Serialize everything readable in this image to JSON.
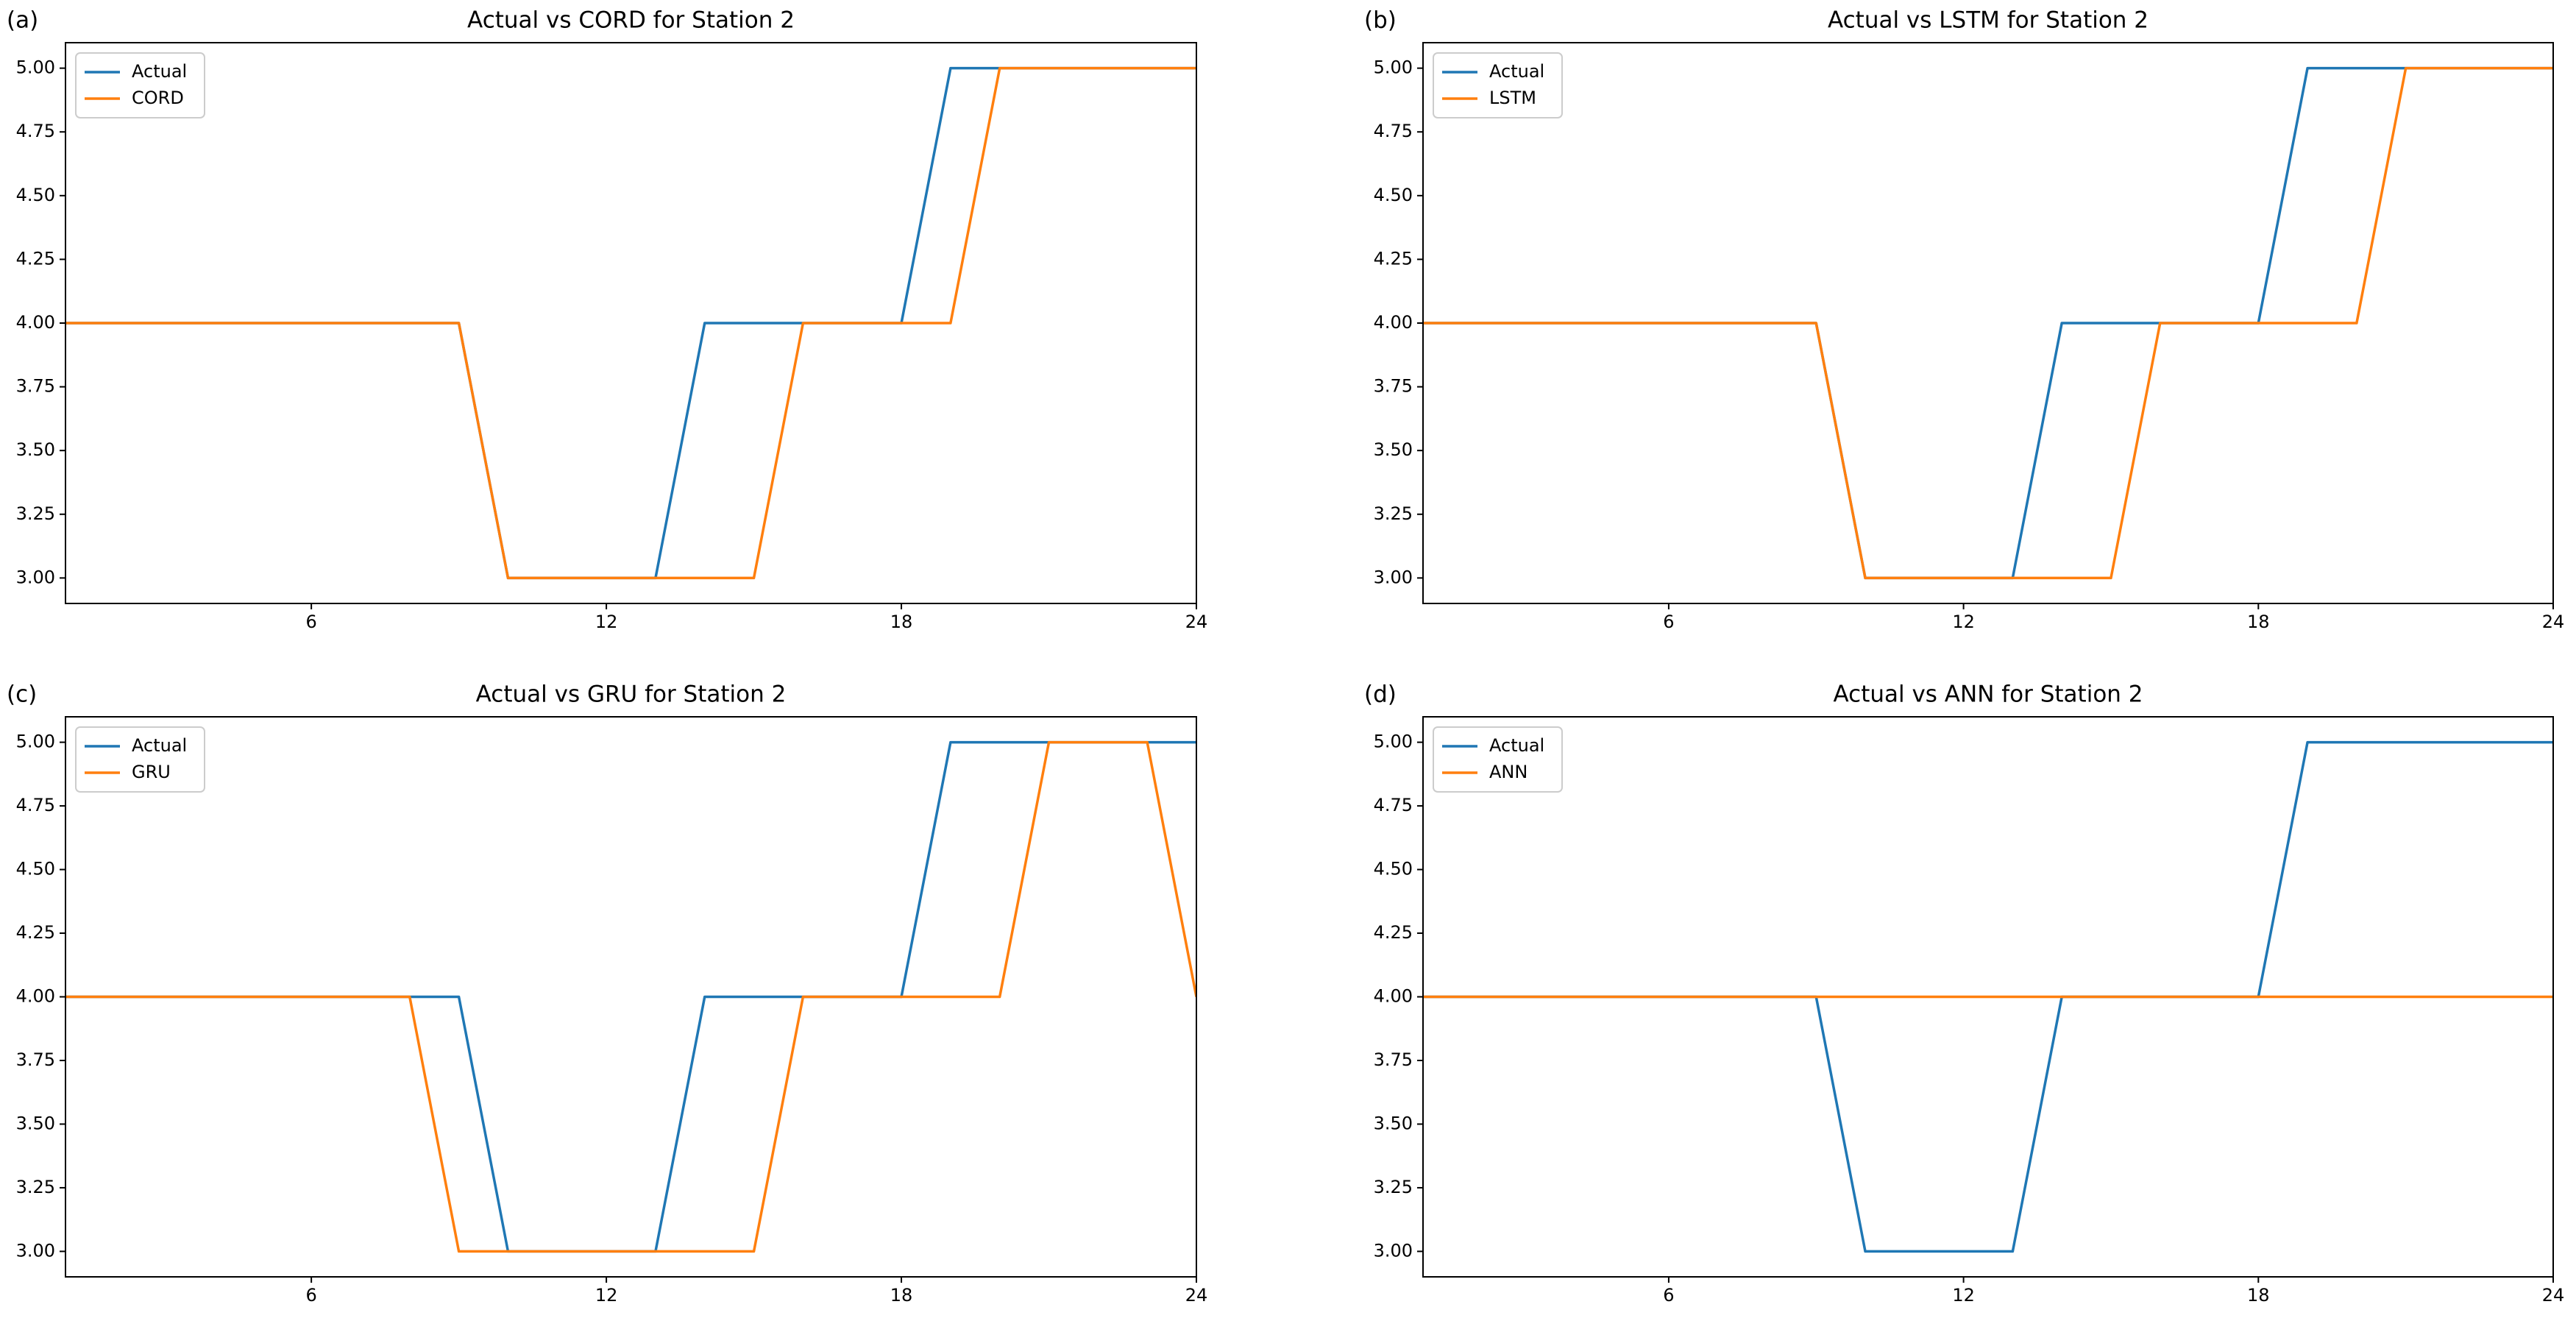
{
  "chart_data": [
    {
      "type": "line",
      "label": "(a)",
      "title": "Actual vs CORD for Station 2",
      "x": [
        1,
        2,
        3,
        4,
        5,
        6,
        7,
        8,
        9,
        10,
        11,
        12,
        13,
        14,
        15,
        16,
        17,
        18,
        19,
        20,
        21,
        22,
        23,
        24
      ],
      "series": [
        {
          "name": "Actual",
          "color": "#1f77b4",
          "values": [
            4,
            4,
            4,
            4,
            4,
            4,
            4,
            4,
            4,
            3,
            3,
            3,
            3,
            4,
            4,
            4,
            4,
            4,
            5,
            5,
            5,
            5,
            5,
            5
          ]
        },
        {
          "name": "CORD",
          "color": "#ff7f0e",
          "values": [
            4,
            4,
            4,
            4,
            4,
            4,
            4,
            4,
            4,
            3,
            3,
            3,
            3,
            3,
            3,
            4,
            4,
            4,
            4,
            5,
            5,
            5,
            5,
            5
          ]
        }
      ],
      "xlim": [
        1,
        24
      ],
      "xticks": [
        6,
        12,
        18,
        24
      ],
      "ylim": [
        2.9,
        5.1
      ],
      "yticks": [
        {
          "value": 3,
          "label": "3.00"
        },
        {
          "value": 3.25,
          "label": "3.25"
        },
        {
          "value": 3.5,
          "label": "3.50"
        },
        {
          "value": 3.75,
          "label": "3.75"
        },
        {
          "value": 4,
          "label": "4.00"
        },
        {
          "value": 4.25,
          "label": "4.25"
        },
        {
          "value": 4.5,
          "label": "4.50"
        },
        {
          "value": 4.75,
          "label": "4.75"
        },
        {
          "value": 5,
          "label": "5.00"
        }
      ],
      "legend": "upper left",
      "grid": false
    },
    {
      "type": "line",
      "label": "(b)",
      "title": "Actual vs LSTM for Station 2",
      "x": [
        1,
        2,
        3,
        4,
        5,
        6,
        7,
        8,
        9,
        10,
        11,
        12,
        13,
        14,
        15,
        16,
        17,
        18,
        19,
        20,
        21,
        22,
        23,
        24
      ],
      "series": [
        {
          "name": "Actual",
          "color": "#1f77b4",
          "values": [
            4,
            4,
            4,
            4,
            4,
            4,
            4,
            4,
            4,
            3,
            3,
            3,
            3,
            4,
            4,
            4,
            4,
            4,
            5,
            5,
            5,
            5,
            5,
            5
          ]
        },
        {
          "name": "LSTM",
          "color": "#ff7f0e",
          "values": [
            4,
            4,
            4,
            4,
            4,
            4,
            4,
            4,
            4,
            3,
            3,
            3,
            3,
            3,
            3,
            4,
            4,
            4,
            4,
            4,
            5,
            5,
            5,
            5
          ]
        }
      ],
      "xlim": [
        1,
        24
      ],
      "xticks": [
        6,
        12,
        18,
        24
      ],
      "ylim": [
        2.9,
        5.1
      ],
      "yticks": [
        {
          "value": 3,
          "label": "3.00"
        },
        {
          "value": 3.25,
          "label": "3.25"
        },
        {
          "value": 3.5,
          "label": "3.50"
        },
        {
          "value": 3.75,
          "label": "3.75"
        },
        {
          "value": 4,
          "label": "4.00"
        },
        {
          "value": 4.25,
          "label": "4.25"
        },
        {
          "value": 4.5,
          "label": "4.50"
        },
        {
          "value": 4.75,
          "label": "4.75"
        },
        {
          "value": 5,
          "label": "5.00"
        }
      ],
      "legend": "upper left",
      "grid": false
    },
    {
      "type": "line",
      "label": "(c)",
      "title": "Actual vs GRU for Station 2",
      "x": [
        1,
        2,
        3,
        4,
        5,
        6,
        7,
        8,
        9,
        10,
        11,
        12,
        13,
        14,
        15,
        16,
        17,
        18,
        19,
        20,
        21,
        22,
        23,
        24
      ],
      "series": [
        {
          "name": "Actual",
          "color": "#1f77b4",
          "values": [
            4,
            4,
            4,
            4,
            4,
            4,
            4,
            4,
            4,
            3,
            3,
            3,
            3,
            4,
            4,
            4,
            4,
            4,
            5,
            5,
            5,
            5,
            5,
            5
          ]
        },
        {
          "name": "GRU",
          "color": "#ff7f0e",
          "values": [
            4,
            4,
            4,
            4,
            4,
            4,
            4,
            4,
            3,
            3,
            3,
            3,
            3,
            3,
            3,
            4,
            4,
            4,
            4,
            4,
            5,
            5,
            5,
            4
          ]
        }
      ],
      "xlim": [
        1,
        24
      ],
      "xticks": [
        6,
        12,
        18,
        24
      ],
      "ylim": [
        2.9,
        5.1
      ],
      "yticks": [
        {
          "value": 3,
          "label": "3.00"
        },
        {
          "value": 3.25,
          "label": "3.25"
        },
        {
          "value": 3.5,
          "label": "3.50"
        },
        {
          "value": 3.75,
          "label": "3.75"
        },
        {
          "value": 4,
          "label": "4.00"
        },
        {
          "value": 4.25,
          "label": "4.25"
        },
        {
          "value": 4.5,
          "label": "4.50"
        },
        {
          "value": 4.75,
          "label": "4.75"
        },
        {
          "value": 5,
          "label": "5.00"
        }
      ],
      "legend": "upper left",
      "grid": false
    },
    {
      "type": "line",
      "label": "(d)",
      "title": "Actual vs ANN for Station 2",
      "x": [
        1,
        2,
        3,
        4,
        5,
        6,
        7,
        8,
        9,
        10,
        11,
        12,
        13,
        14,
        15,
        16,
        17,
        18,
        19,
        20,
        21,
        22,
        23,
        24
      ],
      "series": [
        {
          "name": "Actual",
          "color": "#1f77b4",
          "values": [
            4,
            4,
            4,
            4,
            4,
            4,
            4,
            4,
            4,
            3,
            3,
            3,
            3,
            4,
            4,
            4,
            4,
            4,
            5,
            5,
            5,
            5,
            5,
            5
          ]
        },
        {
          "name": "ANN",
          "color": "#ff7f0e",
          "values": [
            4,
            4,
            4,
            4,
            4,
            4,
            4,
            4,
            4,
            4,
            4,
            4,
            4,
            4,
            4,
            4,
            4,
            4,
            4,
            4,
            4,
            4,
            4,
            4
          ]
        }
      ],
      "xlim": [
        1,
        24
      ],
      "xticks": [
        6,
        12,
        18,
        24
      ],
      "ylim": [
        2.9,
        5.1
      ],
      "yticks": [
        {
          "value": 3,
          "label": "3.00"
        },
        {
          "value": 3.25,
          "label": "3.25"
        },
        {
          "value": 3.5,
          "label": "3.50"
        },
        {
          "value": 3.75,
          "label": "3.75"
        },
        {
          "value": 4,
          "label": "4.00"
        },
        {
          "value": 4.25,
          "label": "4.25"
        },
        {
          "value": 4.5,
          "label": "4.50"
        },
        {
          "value": 4.75,
          "label": "4.75"
        },
        {
          "value": 5,
          "label": "5.00"
        }
      ],
      "legend": "upper left",
      "grid": false
    }
  ]
}
